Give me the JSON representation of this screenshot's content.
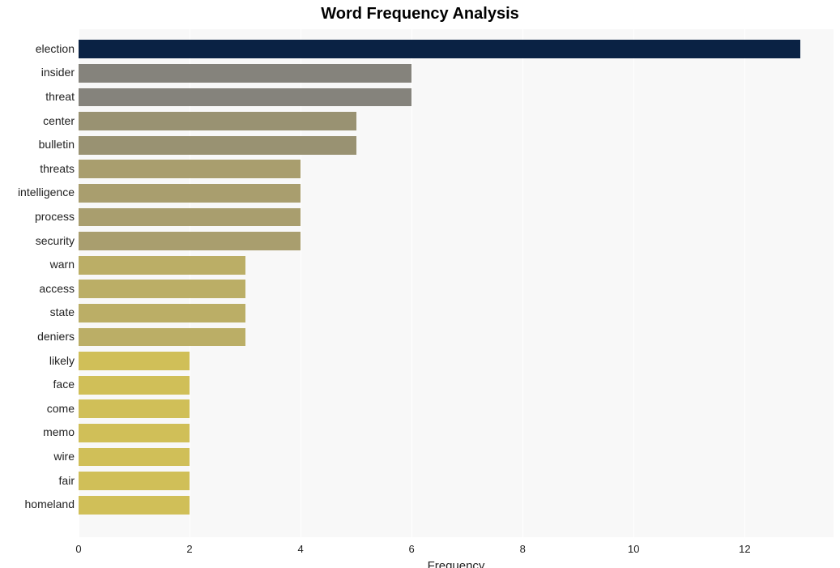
{
  "chart": {
    "type": "bar",
    "orientation": "horizontal",
    "title": "Word Frequency Analysis",
    "title_fontsize": 20,
    "title_fontweight": "bold",
    "title_color": "#000000",
    "background_color": "#ffffff",
    "plot_background": "#f8f8f8",
    "grid_color": "#ffffff",
    "xaxis": {
      "title": "Frequency",
      "title_fontsize": 15,
      "xlim": [
        0,
        13.6
      ],
      "ticks": [
        0,
        2,
        4,
        6,
        8,
        10,
        12
      ],
      "tick_fontsize": 13,
      "tick_color": "#222222"
    },
    "yaxis": {
      "tick_fontsize": 14,
      "tick_color": "#222222"
    },
    "bar_height_ratio": 0.77,
    "labels": [
      "election",
      "insider",
      "threat",
      "center",
      "bulletin",
      "threats",
      "intelligence",
      "process",
      "security",
      "warn",
      "access",
      "state",
      "deniers",
      "likely",
      "face",
      "come",
      "memo",
      "wire",
      "fair",
      "homeland"
    ],
    "values": [
      13,
      6,
      6,
      5,
      5,
      4,
      4,
      4,
      4,
      3,
      3,
      3,
      3,
      2,
      2,
      2,
      2,
      2,
      2,
      2
    ],
    "bar_colors": [
      "#0a2244",
      "#85837c",
      "#85837c",
      "#999272",
      "#999272",
      "#a99e6e",
      "#a99e6e",
      "#a99e6e",
      "#a99e6e",
      "#bbae66",
      "#bbae66",
      "#bbae66",
      "#bbae66",
      "#d0bf58",
      "#d0bf58",
      "#d0bf58",
      "#d0bf58",
      "#d0bf58",
      "#d0bf58",
      "#d0bf58"
    ]
  }
}
